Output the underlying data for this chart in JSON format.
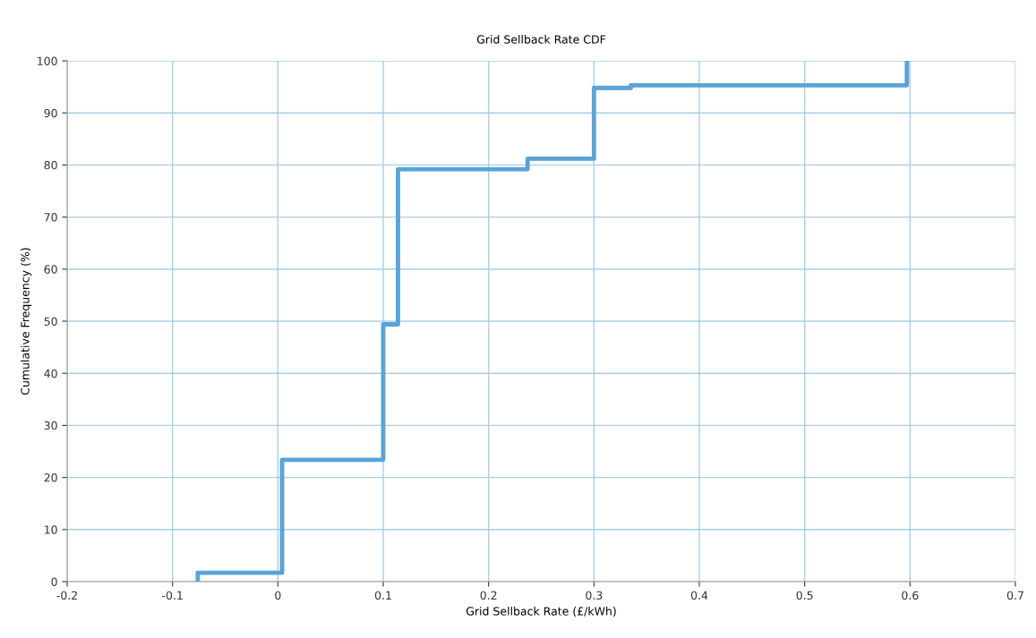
{
  "chart_data": {
    "type": "step",
    "title": "Grid Sellback Rate CDF",
    "xlabel": "Grid Sellback Rate (£/kWh)",
    "ylabel": "Cumulative Frequency (%)",
    "x": [
      -0.076,
      0.004,
      0.1,
      0.114,
      0.237,
      0.3,
      0.335,
      0.597,
      0.597
    ],
    "series": [
      {
        "color": "#5ba3d6",
        "values": [
          0,
          1.7,
          23.4,
          49.4,
          79.2,
          81.2,
          94.8,
          95.3,
          100
        ]
      }
    ],
    "xlim": [
      -0.2,
      0.7
    ],
    "xticks": [
      -0.2,
      -0.1,
      0,
      0.1,
      0.2,
      0.3,
      0.4,
      0.5,
      0.6,
      0.7
    ],
    "ylim": [
      0,
      100
    ],
    "yticks": [
      0,
      10,
      20,
      30,
      40,
      50,
      60,
      70,
      80,
      90,
      100
    ],
    "grid": true,
    "legend": false
  }
}
